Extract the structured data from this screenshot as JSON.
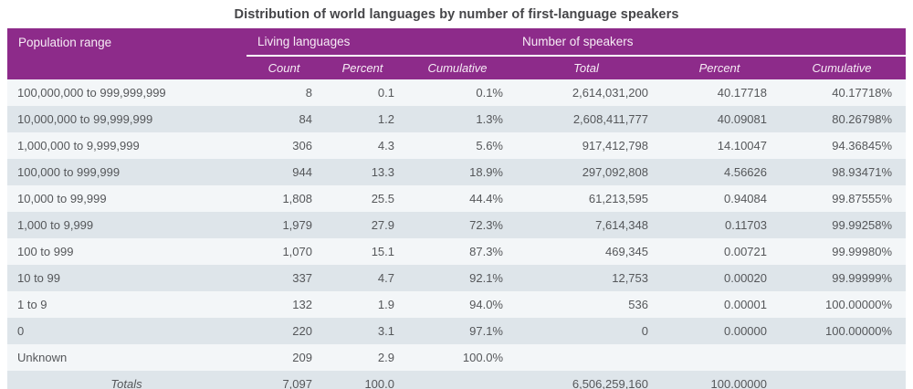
{
  "colors": {
    "header_bg": "#8d2b8a",
    "header_text": "#f6ecf5",
    "row_base": "#f3f6f8",
    "row_alt": "#dee5ea",
    "cell_text": "#55575a",
    "title_text": "#454548"
  },
  "chart_data": {
    "type": "table",
    "title": "Distribution of world languages by number of first-language speakers",
    "column_groups": [
      "",
      "Living languages",
      "Number of speakers"
    ],
    "columns": [
      "Population range",
      "Count",
      "Percent",
      "Cumulative",
      "Total",
      "Percent",
      "Cumulative"
    ],
    "rows": [
      [
        "100,000,000 to 999,999,999",
        "8",
        "0.1",
        "0.1%",
        "2,614,031,200",
        "40.17718",
        "40.17718%"
      ],
      [
        "10,000,000 to 99,999,999",
        "84",
        "1.2",
        "1.3%",
        "2,608,411,777",
        "40.09081",
        "80.26798%"
      ],
      [
        "1,000,000 to 9,999,999",
        "306",
        "4.3",
        "5.6%",
        "917,412,798",
        "14.10047",
        "94.36845%"
      ],
      [
        "100,000 to 999,999",
        "944",
        "13.3",
        "18.9%",
        "297,092,808",
        "4.56626",
        "98.93471%"
      ],
      [
        "10,000 to 99,999",
        "1,808",
        "25.5",
        "44.4%",
        "61,213,595",
        "0.94084",
        "99.87555%"
      ],
      [
        "1,000 to 9,999",
        "1,979",
        "27.9",
        "72.3%",
        "7,614,348",
        "0.11703",
        "99.99258%"
      ],
      [
        "100 to 999",
        "1,070",
        "15.1",
        "87.3%",
        "469,345",
        "0.00721",
        "99.99980%"
      ],
      [
        "10 to 99",
        "337",
        "4.7",
        "92.1%",
        "12,753",
        "0.00020",
        "99.99999%"
      ],
      [
        "1 to 9",
        "132",
        "1.9",
        "94.0%",
        "536",
        "0.00001",
        "100.00000%"
      ],
      [
        "0",
        "220",
        "3.1",
        "97.1%",
        "0",
        "0.00000",
        "100.00000%"
      ],
      [
        "Unknown",
        "209",
        "2.9",
        "100.0%",
        "",
        "",
        ""
      ]
    ],
    "totals_row": [
      "Totals",
      "7,097",
      "100.0",
      "",
      "6,506,259,160",
      "100.00000",
      ""
    ]
  }
}
